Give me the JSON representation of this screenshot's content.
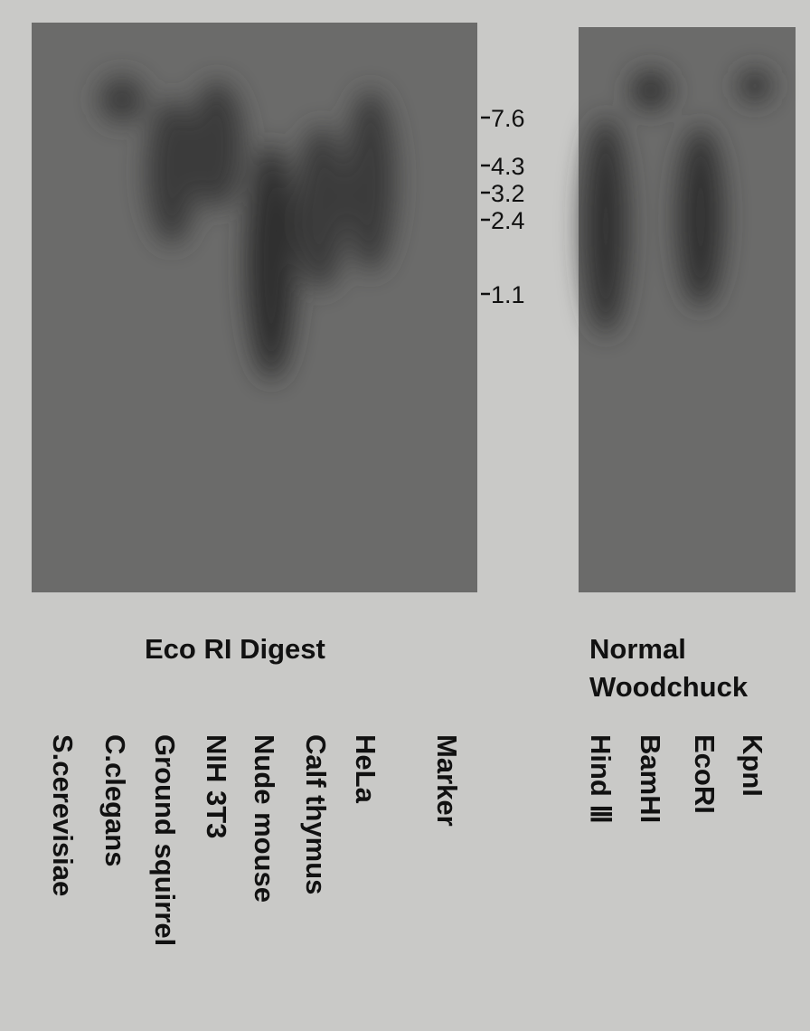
{
  "gel": {
    "markers": [
      "7.6",
      "4.3",
      "3.2",
      "2.4",
      "1.1"
    ]
  },
  "left_panel": {
    "title": "Eco RI  Digest",
    "lanes": [
      "S.cerevisiae",
      "C.clegans",
      "Ground squirrel",
      "NIH 3T3",
      "Nude mouse",
      "Calf thymus",
      "HeLa",
      "Marker"
    ]
  },
  "right_panel": {
    "title_lines": [
      "Normal",
      "Woodchuck"
    ],
    "lanes": [
      "Hind Ⅲ",
      "BamHI",
      "EcoRI",
      "KpnI"
    ]
  }
}
